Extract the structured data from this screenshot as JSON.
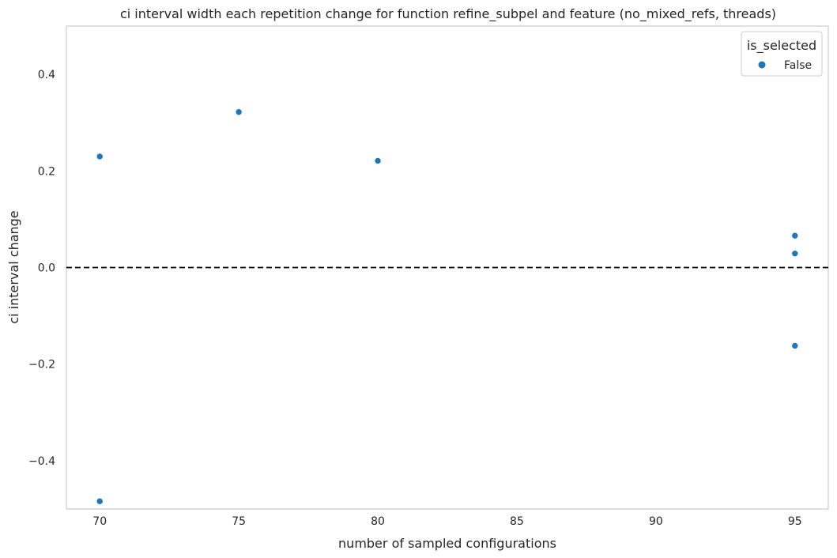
{
  "chart_data": {
    "type": "scatter",
    "title": "ci interval width each repetition change for function refine_subpel and feature (no_mixed_refs, threads)",
    "xlabel": "number of sampled configurations",
    "ylabel": "ci interval change",
    "xlim": [
      68.8,
      96.2
    ],
    "ylim": [
      -0.5,
      0.5
    ],
    "xticks": [
      70,
      75,
      80,
      85,
      90,
      95
    ],
    "yticks": [
      -0.4,
      -0.2,
      0.0,
      0.2,
      0.4
    ],
    "x_tick_labels": [
      "70",
      "75",
      "80",
      "85",
      "90",
      "95"
    ],
    "y_tick_labels": [
      "−0.4",
      "−0.2",
      "0.0",
      "0.2",
      "0.4"
    ],
    "reference_line": {
      "y": 0.0,
      "style": "dashed",
      "color": "#000000"
    },
    "grid": false,
    "legend": {
      "title": "is_selected",
      "placement": "top-right",
      "entries": [
        "False"
      ]
    },
    "series": [
      {
        "name": "False",
        "color": "#1f77b4",
        "points": [
          {
            "x": 70,
            "y": 0.23
          },
          {
            "x": 70,
            "y": -0.484
          },
          {
            "x": 75,
            "y": 0.322
          },
          {
            "x": 80,
            "y": 0.221
          },
          {
            "x": 95,
            "y": 0.066
          },
          {
            "x": 95,
            "y": 0.029
          },
          {
            "x": 95,
            "y": -0.162
          }
        ]
      }
    ]
  }
}
